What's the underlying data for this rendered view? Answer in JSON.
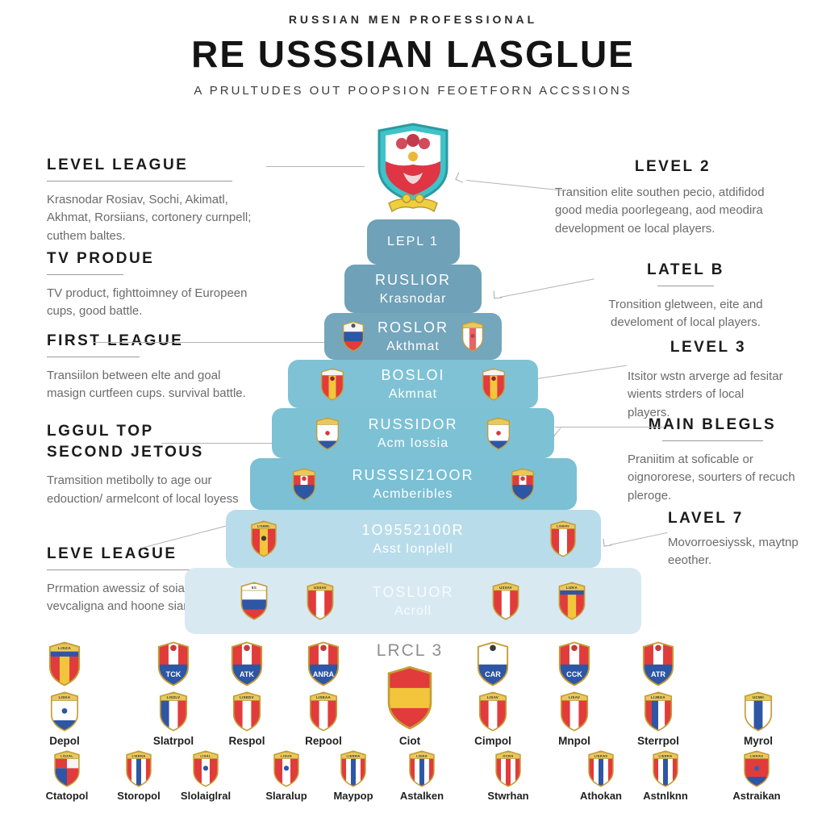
{
  "header": {
    "eyebrow": "RUSSIAN MEN PROFESSIONAL",
    "title": "RE USSSIAN LASGLUE",
    "subtitle": "A PRULTUDES OUT POOPSION FEOETFORN ACCSSIONS"
  },
  "colors": {
    "tier_dark": "#6fa1b8",
    "tier_mid": "#7dc1d5",
    "tier_light": "#b9dcea",
    "tier_pale": "#d8e9f2",
    "shield_red": "#e23b3b",
    "shield_blue": "#2e56a4",
    "shield_gold": "#e9c95c"
  },
  "left_annotations": [
    {
      "title": "LEVEL LEAGUE",
      "body": "Krasnodar Rosiav, Sochi, Akimatl, Akhmat, Rorsiians, cortonery curnpell; cuthem baltes."
    },
    {
      "title": "TV PRODUE",
      "body": "TV product, fighttoimney of Europeen cups, good battle."
    },
    {
      "title": "FIRST LEAGUE",
      "body": "Transiilon between elte and goal masign curtfeen cups. survival battle."
    },
    {
      "title": "LGGUL TOP\nSECOND JETOUS",
      "body": "Tramsition metibolly to age our edouction/ armelcont of local loyess"
    },
    {
      "title": "LEVE LEAGUE",
      "body": "Prrmation awessiz of soial upleveol, vevcaligna and hoone siamite."
    }
  ],
  "right_annotations": [
    {
      "title": "LEVEL 2",
      "body": "Transition elite southen pecio, atdifidod good media poorlegeang, aod meodira development oe local players."
    },
    {
      "title": "LATEL B",
      "body": "Tronsition gletween, eite and develoment of local players."
    },
    {
      "title": "LEVEL 3",
      "body": "Itsitor wstn arverge ad fesitar wients strders of local players."
    },
    {
      "title": "MAIN BLEGLS",
      "body": "Praniitim at soficable or oignororese, sourters of recuch pleroge."
    },
    {
      "title": "LAVEL 7",
      "body": "Movorroesiyssk, maytnp eeother."
    }
  ],
  "pyramid": {
    "tiers": [
      {
        "line1": "LEPL 1",
        "line2": null
      },
      {
        "line1": "RUSLIOR",
        "line2": "Krasnodar"
      },
      {
        "line1": "ROSLOR",
        "line2": "Akthmat",
        "shields": [
          {
            "pattern": "h",
            "colors": [
              "#f5f5f5",
              "#2e56a4",
              "#e23b3b"
            ],
            "emblem": "#555555",
            "epos": "top"
          },
          {
            "band": "",
            "pattern": "v",
            "colors": [
              "#ffffff",
              "#e86464",
              "#ffffff"
            ],
            "emblem": "#c44040",
            "epos": "mid"
          }
        ]
      },
      {
        "line1": "BOSLOI",
        "line2": "Akmnat",
        "shields": [
          {
            "band": "",
            "bandColor": "#f5f5f5",
            "pattern": "v",
            "colors": [
              "#e23b3b",
              "#f2c53d",
              "#e23b3b"
            ],
            "emblem": "#8a2b2b",
            "epos": "top"
          },
          {
            "band": "",
            "bandColor": "#f5f5f5",
            "pattern": "v",
            "colors": [
              "#e23b3b",
              "#f2c53d",
              "#e23b3b"
            ],
            "emblem": "#8a2b2b",
            "epos": "top"
          }
        ]
      },
      {
        "line1": "RUSSIDOR",
        "line2": "Acm Iossia",
        "shields": [
          {
            "band": "",
            "pattern": "h",
            "colors": [
              "#ffffff",
              "#ffffff",
              "#2e56a4"
            ],
            "emblem": "#d23b3b",
            "epos": "mid"
          },
          {
            "band": "",
            "pattern": "h",
            "colors": [
              "#ffffff",
              "#ffffff",
              "#2e56a4"
            ],
            "emblem": "#d23b3b",
            "epos": "mid"
          }
        ]
      },
      {
        "line1": "RUSSSIZ1OOR",
        "line2": "Acmberibles",
        "shields": [
          {
            "band": "",
            "pattern": "v",
            "colors": [
              "#e23b3b",
              "#ffffff",
              "#e23b3b"
            ],
            "bottom": "#2e56a4",
            "emblem": "#d23b3b",
            "epos": "top"
          },
          {
            "band": "",
            "pattern": "v",
            "colors": [
              "#e23b3b",
              "#ffffff",
              "#e23b3b"
            ],
            "bottom": "#2e56a4",
            "emblem": "#d23b3b",
            "epos": "top"
          }
        ]
      },
      {
        "line1": "1O9552100R",
        "line2": "Asst Ionplell",
        "shields": [
          {
            "band": "LISBBL",
            "pattern": "v",
            "colors": [
              "#e23b3b",
              "#f2c53d",
              "#e23b3b"
            ],
            "emblem": "#3a3a3a",
            "epos": "mid"
          },
          {
            "band": "LISBAV",
            "pattern": "v",
            "colors": [
              "#e23b3b",
              "#ffffff",
              "#e23b3b"
            ]
          }
        ]
      },
      {
        "line1": "TOSLUOR",
        "line2": "Acroll",
        "shields": [
          {
            "band": "ES",
            "bandColor": "#ffffff",
            "pattern": "h",
            "colors": [
              "#ffffff",
              "#2e56a4",
              "#e23b3b"
            ]
          },
          {
            "band": "USSAV",
            "pattern": "v",
            "colors": [
              "#e23b3b",
              "#ffffff",
              "#e23b3b"
            ]
          },
          {
            "band": "USSAV",
            "pattern": "v",
            "colors": [
              "#e23b3b",
              "#ffffff",
              "#e23b3b"
            ]
          },
          {
            "band": "LIZKA",
            "band2": "#2e56a4",
            "pattern": "v",
            "colors": [
              "#e23b3b",
              "#f2c53d",
              "#e23b3b"
            ]
          }
        ]
      }
    ]
  },
  "footer": {
    "lrcl_label": "LRCL 3",
    "columns": [
      {
        "label": "Depol",
        "top": {
          "band": "LISZA",
          "band2": "#2e56a4",
          "pattern": "v",
          "colors": [
            "#e23b3b",
            "#f2c53d",
            "#e23b3b"
          ]
        },
        "shield": {
          "band": "LISKA",
          "pattern": "h",
          "colors": [
            "#ffffff",
            "#ffffff",
            "#2e56a4"
          ],
          "emblem": "#2e56a4",
          "epos": "mid"
        }
      },
      {
        "label": "Slatrpol",
        "top": {
          "pattern": "v",
          "colors": [
            "#e23b3b",
            "#ffffff",
            "#e23b3b"
          ],
          "bottom": "#2e56a4",
          "btext": "TCK",
          "emblem": "#c43b3b",
          "epos": "top"
        },
        "shield": {
          "band": "LISZLV",
          "pattern": "v",
          "colors": [
            "#2e56a4",
            "#ffffff",
            "#e23b3b"
          ]
        }
      },
      {
        "label": "Respol",
        "top": {
          "pattern": "v",
          "colors": [
            "#e23b3b",
            "#ffffff",
            "#e23b3b"
          ],
          "bottom": "#2e56a4",
          "btext": "ATK",
          "emblem": "#c43b3b",
          "epos": "top"
        },
        "shield": {
          "band": "LISEDV",
          "pattern": "v",
          "colors": [
            "#e23b3b",
            "#ffffff",
            "#e23b3b"
          ]
        }
      },
      {
        "label": "Repool",
        "top": {
          "pattern": "v",
          "colors": [
            "#e23b3b",
            "#ffffff",
            "#e23b3b"
          ],
          "bottom": "#2e56a4",
          "btext": "ANRA",
          "emblem": "#c43b3b",
          "epos": "top"
        },
        "shield": {
          "band": "LISEAA",
          "pattern": "v",
          "colors": [
            "#e23b3b",
            "#ffffff",
            "#e23b3b"
          ]
        }
      },
      {
        "label": "Ciot",
        "lrcl": true,
        "big": {
          "pattern": "h",
          "colors": [
            "#e23b3b",
            "#f2c53d",
            "#e23b3b"
          ]
        }
      },
      {
        "label": "Cimpol",
        "top": {
          "pattern": "v",
          "colors": [
            "#ffffff",
            "#ffffff",
            "#ffffff"
          ],
          "bottom": "#2e56a4",
          "btext": "CAR",
          "emblem": "#3a3a3a",
          "epos": "top"
        },
        "shield": {
          "band": "LISAV",
          "pattern": "v",
          "colors": [
            "#e23b3b",
            "#ffffff",
            "#e23b3b"
          ]
        }
      },
      {
        "label": "Mnpol",
        "top": {
          "pattern": "v",
          "colors": [
            "#e23b3b",
            "#ffffff",
            "#e23b3b"
          ],
          "bottom": "#2e56a4",
          "btext": "CCK",
          "emblem": "#c43b3b",
          "epos": "top"
        },
        "shield": {
          "band": "LISAV",
          "pattern": "v",
          "colors": [
            "#e23b3b",
            "#ffffff",
            "#e23b3b"
          ]
        }
      },
      {
        "label": "Sterrpol",
        "top": {
          "pattern": "v",
          "colors": [
            "#e23b3b",
            "#ffffff",
            "#e23b3b"
          ],
          "bottom": "#2e56a4",
          "btext": "ATR",
          "emblem": "#c43b3b",
          "epos": "top"
        },
        "shield": {
          "band": "LIJBGA",
          "pattern": "v",
          "colors": [
            "#e23b3b",
            "#2e56a4",
            "#ffffff",
            "#e23b3b"
          ]
        }
      },
      {
        "label": "Myrol",
        "top": null,
        "shield": {
          "band": "UCMII",
          "pattern": "v",
          "colors": [
            "#ffffff",
            "#2e56a4",
            "#ffffff"
          ]
        }
      }
    ],
    "row2": [
      {
        "label": "Ctatopol",
        "shield": {
          "band": "LISZAL",
          "pattern": "q",
          "colors": [
            "#e23b3b",
            "#f5f5f5",
            "#2e56a4",
            "#e23b3b"
          ]
        }
      },
      {
        "label": "Storopol",
        "shield": {
          "band": "LIERRA",
          "pattern": "v",
          "colors": [
            "#e23b3b",
            "#ffffff",
            "#2e56a4",
            "#ffffff",
            "#e23b3b"
          ]
        }
      },
      {
        "label": "Slolaiglral",
        "shield": {
          "band": "LISAL",
          "pattern": "v",
          "colors": [
            "#e23b3b",
            "#ffffff",
            "#e23b3b"
          ],
          "emblem": "#2e56a4",
          "epos": "mid"
        }
      },
      {
        "label": "Slaralup",
        "shield": {
          "band": "LISUN",
          "pattern": "v",
          "colors": [
            "#e23b3b",
            "#ffffff",
            "#e23b3b"
          ],
          "emblem": "#2e56a4",
          "epos": "mid"
        }
      },
      {
        "label": "Maypop",
        "shield": {
          "band": "LIERRA",
          "pattern": "v",
          "colors": [
            "#e23b3b",
            "#ffffff",
            "#2e56a4",
            "#ffffff",
            "#e23b3b"
          ]
        }
      },
      {
        "label": "Astalken",
        "shield": {
          "band": "LIERA",
          "pattern": "v",
          "colors": [
            "#e23b3b",
            "#ffffff",
            "#2e56a4",
            "#ffffff",
            "#e23b3b"
          ]
        }
      },
      {
        "label": "Stwrhan",
        "shield": {
          "band": "OCRA",
          "pattern": "v",
          "colors": [
            "#e23b3b",
            "#ffffff",
            "#e23b3b",
            "#ffffff",
            "#e23b3b"
          ]
        }
      },
      {
        "label": "Athokan",
        "shield": {
          "band": "LIERAS",
          "pattern": "v",
          "colors": [
            "#e23b3b",
            "#ffffff",
            "#2e56a4",
            "#ffffff",
            "#e23b3b"
          ]
        }
      },
      {
        "label": "Astnlknn",
        "shield": {
          "band": "LIERRA",
          "pattern": "v",
          "colors": [
            "#e23b3b",
            "#ffffff",
            "#2e56a4",
            "#ffffff",
            "#e23b3b"
          ]
        }
      },
      {
        "label": "Astraikan",
        "shield": {
          "band": "LIERAS",
          "pattern": "h",
          "colors": [
            "#e23b3b",
            "#e23b3b",
            "#2e56a4"
          ],
          "emblem": "#3a5fb0",
          "epos": "mid"
        }
      }
    ]
  }
}
